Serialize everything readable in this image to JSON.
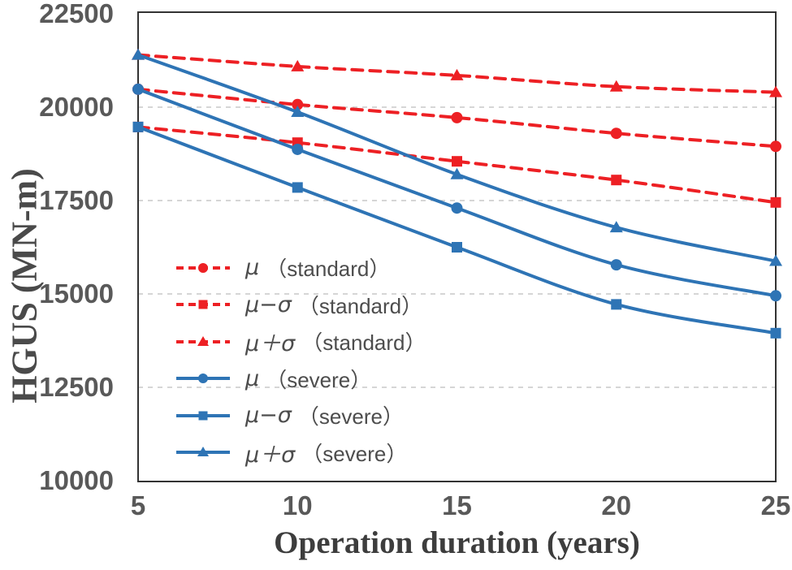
{
  "chart_data": {
    "type": "line",
    "title": "",
    "xlabel": "Operation duration (years)",
    "ylabel": "HGUS (MN-m)",
    "x": [
      5,
      10,
      15,
      20,
      25
    ],
    "xlim": [
      5,
      25
    ],
    "ylim": [
      10000,
      22500
    ],
    "x_ticks": [
      5,
      10,
      15,
      20,
      25
    ],
    "y_ticks": [
      10000,
      12500,
      15000,
      17500,
      20000,
      22500
    ],
    "grid": "horizontal dashed, on 12500/15000/17500/20000 only",
    "legend_position": "inside lower-left",
    "series": [
      {
        "name": "μ （standard）",
        "legend_symbol": "μ",
        "legend_name": "（standard）",
        "color": "#ed2024",
        "dashed": true,
        "marker": "circle",
        "values": [
          20480,
          20070,
          19720,
          19300,
          18950
        ]
      },
      {
        "name": "μ−σ （standard）",
        "legend_symbol": "μ−σ",
        "legend_name": "（standard）",
        "color": "#ed2024",
        "dashed": true,
        "marker": "square",
        "values": [
          19470,
          19050,
          18550,
          18050,
          17450
        ]
      },
      {
        "name": "μ＋σ （standard）",
        "legend_symbol": "μ＋σ",
        "legend_name": "（standard）",
        "color": "#ed2024",
        "dashed": true,
        "marker": "triangle",
        "values": [
          21400,
          21090,
          20850,
          20550,
          20400
        ]
      },
      {
        "name": "μ （severe）",
        "legend_symbol": "μ",
        "legend_name": "（severe）",
        "color": "#2e74b5",
        "dashed": false,
        "marker": "circle",
        "values": [
          20480,
          18870,
          17300,
          15780,
          14950
        ]
      },
      {
        "name": "μ−σ （severe）",
        "legend_symbol": "μ−σ",
        "legend_name": "（severe）",
        "color": "#2e74b5",
        "dashed": false,
        "marker": "square",
        "values": [
          19470,
          17850,
          16250,
          14720,
          13950
        ]
      },
      {
        "name": "μ＋σ （severe）",
        "legend_symbol": "μ＋σ",
        "legend_name": "（severe）",
        "color": "#2e74b5",
        "dashed": false,
        "marker": "triangle",
        "values": [
          21400,
          19870,
          18200,
          16780,
          15880
        ]
      }
    ]
  },
  "colors": {
    "standard_red": "#ed2024",
    "severe_blue": "#2e74b5",
    "gridline": "#c9c9c9",
    "border": "#333333",
    "tick_text": "#595959",
    "axis_title_text": "#3d3d3d"
  }
}
